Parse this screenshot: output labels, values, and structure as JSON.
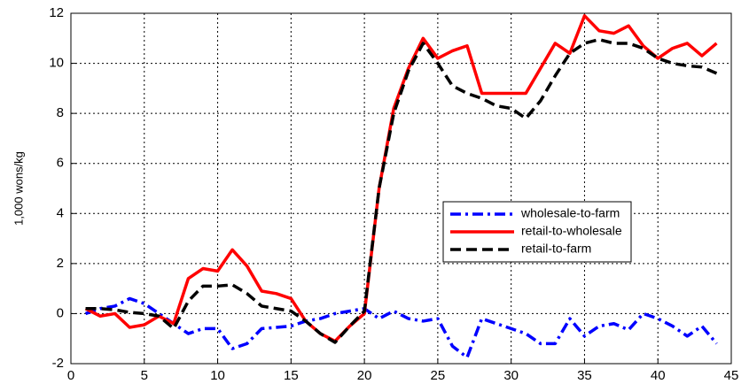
{
  "chart_data": {
    "type": "line",
    "y_label": "1,000 wons/kg",
    "x": [
      1,
      2,
      3,
      4,
      5,
      6,
      7,
      8,
      9,
      10,
      11,
      12,
      13,
      14,
      15,
      16,
      17,
      18,
      19,
      20,
      21,
      22,
      23,
      24,
      25,
      26,
      27,
      28,
      29,
      30,
      31,
      32,
      33,
      34,
      35,
      36,
      37,
      38,
      39,
      40,
      41,
      42,
      43,
      44
    ],
    "series": [
      {
        "name": "wholesale-to-farm",
        "color": "#0000ff",
        "dash": "dashdot",
        "values": [
          0,
          0.2,
          0.3,
          0.6,
          0.4,
          0,
          -0.4,
          -0.8,
          -0.6,
          -0.6,
          -1.4,
          -1.2,
          -0.6,
          -0.55,
          -0.5,
          -0.3,
          -0.2,
          0,
          0.1,
          0.2,
          -0.2,
          0.1,
          -0.2,
          -0.3,
          -0.2,
          -1.3,
          -1.75,
          -0.2,
          -0.4,
          -0.6,
          -0.8,
          -1.2,
          -1.2,
          -0.2,
          -0.9,
          -0.5,
          -0.4,
          -0.65,
          0,
          -0.2,
          -0.5,
          -0.9,
          -0.5,
          -1.2
        ]
      },
      {
        "name": "retail-to-wholesale",
        "color": "#ff0000",
        "dash": "solid",
        "values": [
          0.2,
          -0.1,
          0,
          -0.55,
          -0.45,
          -0.1,
          -0.4,
          1.4,
          1.8,
          1.7,
          2.55,
          1.9,
          0.9,
          0.8,
          0.6,
          -0.3,
          -0.8,
          -1.1,
          -0.5,
          0,
          5,
          8.2,
          9.8,
          11,
          10.2,
          10.5,
          10.7,
          8.8,
          8.8,
          8.8,
          8.8,
          9.8,
          10.8,
          10.4,
          11.9,
          11.3,
          11.2,
          11.5,
          10.7,
          10.2,
          10.6,
          10.8,
          10.3,
          10.8
        ]
      },
      {
        "name": "retail-to-farm",
        "color": "#000000",
        "dash": "dashed",
        "values": [
          0.2,
          0.2,
          0.15,
          0.05,
          0,
          -0.1,
          -0.6,
          0.5,
          1.1,
          1.1,
          1.15,
          0.8,
          0.3,
          0.2,
          0.1,
          -0.3,
          -0.8,
          -1.15,
          -0.5,
          0.1,
          5,
          8,
          9.7,
          10.8,
          10,
          9.1,
          8.8,
          8.6,
          8.3,
          8.2,
          7.8,
          8.5,
          9.5,
          10.4,
          10.8,
          10.95,
          10.8,
          10.8,
          10.6,
          10.2,
          10,
          9.9,
          9.85,
          9.6
        ]
      }
    ],
    "xlim": [
      0,
      45
    ],
    "xticks": [
      0,
      5,
      10,
      15,
      20,
      25,
      30,
      35,
      40,
      45
    ],
    "ylim": [
      -2,
      12
    ],
    "yticks": [
      -2,
      0,
      2,
      4,
      6,
      8,
      10,
      12
    ],
    "grid": true,
    "legend": "center-right"
  }
}
